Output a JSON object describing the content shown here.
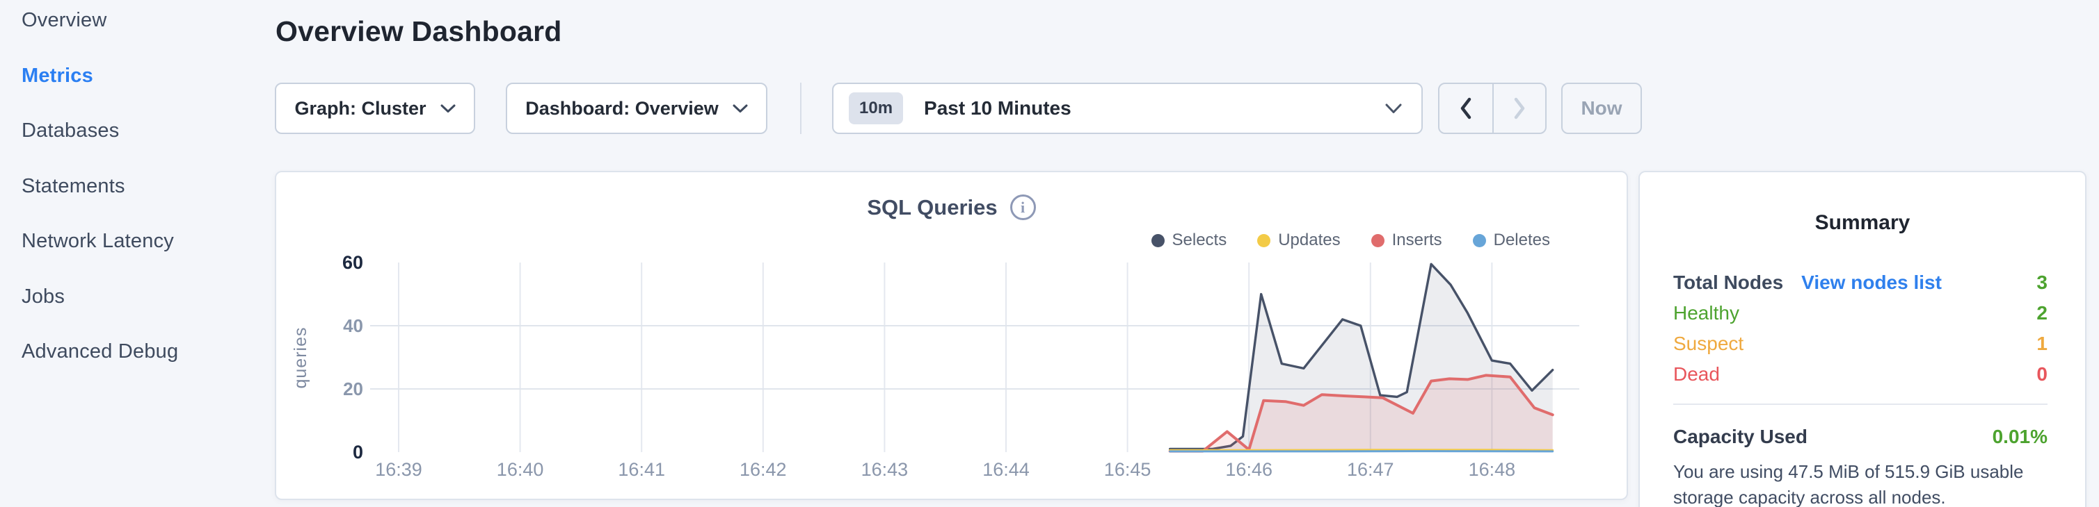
{
  "colors": {
    "accent_blue": "#2b7ff2",
    "green": "#4da32f",
    "orange": "#efa93f",
    "red": "#e8565c",
    "page_bg": "#f4f6fa",
    "card_bg": "#ffffff"
  },
  "sidebar": {
    "items": [
      {
        "label": "Overview",
        "active": false
      },
      {
        "label": "Metrics",
        "active": true
      },
      {
        "label": "Databases",
        "active": false
      },
      {
        "label": "Statements",
        "active": false
      },
      {
        "label": "Network Latency",
        "active": false
      },
      {
        "label": "Jobs",
        "active": false
      },
      {
        "label": "Advanced Debug",
        "active": false
      }
    ]
  },
  "header": {
    "title": "Overview Dashboard"
  },
  "toolbar": {
    "graph_dropdown": "Graph: Cluster",
    "dashboard_dropdown": "Dashboard: Overview",
    "time_badge": "10m",
    "time_label": "Past 10 Minutes",
    "now_label": "Now"
  },
  "chart_card": {
    "title": "SQL Queries"
  },
  "chart_data": {
    "type": "area",
    "title": "SQL Queries",
    "ylabel": "queries",
    "ylim": [
      0,
      60
    ],
    "yticks": [
      0,
      20,
      40,
      60
    ],
    "x_ticks": [
      "16:39",
      "16:40",
      "16:41",
      "16:42",
      "16:43",
      "16:44",
      "16:45",
      "16:46",
      "16:47",
      "16:48"
    ],
    "x_start_minute": 39,
    "x_end_minute": 48.5,
    "grid": "on",
    "legend_position": "top-right",
    "series": [
      {
        "name": "Selects",
        "color": "#475268",
        "fill": "rgba(71,82,104,0.10)",
        "points": [
          [
            45.35,
            1
          ],
          [
            45.7,
            1
          ],
          [
            45.85,
            2
          ],
          [
            45.95,
            5
          ],
          [
            46.1,
            50
          ],
          [
            46.27,
            28
          ],
          [
            46.45,
            26.5
          ],
          [
            46.77,
            42
          ],
          [
            46.92,
            40
          ],
          [
            47.08,
            18
          ],
          [
            47.22,
            17.5
          ],
          [
            47.3,
            19
          ],
          [
            47.5,
            59.5
          ],
          [
            47.66,
            53
          ],
          [
            47.8,
            44
          ],
          [
            48.0,
            29
          ],
          [
            48.15,
            28
          ],
          [
            48.33,
            19.5
          ],
          [
            48.5,
            26
          ]
        ]
      },
      {
        "name": "Updates",
        "color": "#f3cb47",
        "fill": "none",
        "points": [
          [
            45.35,
            0.6
          ],
          [
            46.0,
            0.6
          ],
          [
            47.0,
            0.7
          ],
          [
            48.0,
            0.7
          ],
          [
            48.5,
            0.6
          ]
        ]
      },
      {
        "name": "Inserts",
        "color": "#e06c6c",
        "fill": "rgba(224,108,108,0.14)",
        "points": [
          [
            45.35,
            0.3
          ],
          [
            45.62,
            0.3
          ],
          [
            45.82,
            6.5
          ],
          [
            46.0,
            0.8
          ],
          [
            46.12,
            16.3
          ],
          [
            46.3,
            16
          ],
          [
            46.45,
            14.8
          ],
          [
            46.6,
            18.2
          ],
          [
            46.78,
            17.8
          ],
          [
            46.95,
            17.5
          ],
          [
            47.1,
            17.2
          ],
          [
            47.35,
            12.3
          ],
          [
            47.5,
            22.5
          ],
          [
            47.65,
            23.2
          ],
          [
            47.8,
            23
          ],
          [
            47.95,
            24.3
          ],
          [
            48.15,
            23.8
          ],
          [
            48.35,
            14
          ],
          [
            48.5,
            11.8
          ]
        ]
      },
      {
        "name": "Deletes",
        "color": "#67a5d8",
        "fill": "none",
        "points": [
          [
            45.35,
            0.25
          ],
          [
            46.5,
            0.25
          ],
          [
            47.5,
            0.3
          ],
          [
            48.5,
            0.25
          ]
        ]
      }
    ]
  },
  "summary": {
    "title": "Summary",
    "total_label": "Total Nodes",
    "view_link": "View nodes list",
    "total_value": "3",
    "rows": [
      {
        "label": "Healthy",
        "value": "2",
        "color": "#4da32f"
      },
      {
        "label": "Suspect",
        "value": "1",
        "color": "#efa93f"
      },
      {
        "label": "Dead",
        "value": "0",
        "color": "#e8565c"
      }
    ],
    "capacity_label": "Capacity Used",
    "capacity_value": "0.01%",
    "capacity_note": "You are using 47.5 MiB of 515.9 GiB usable storage capacity across all nodes."
  }
}
